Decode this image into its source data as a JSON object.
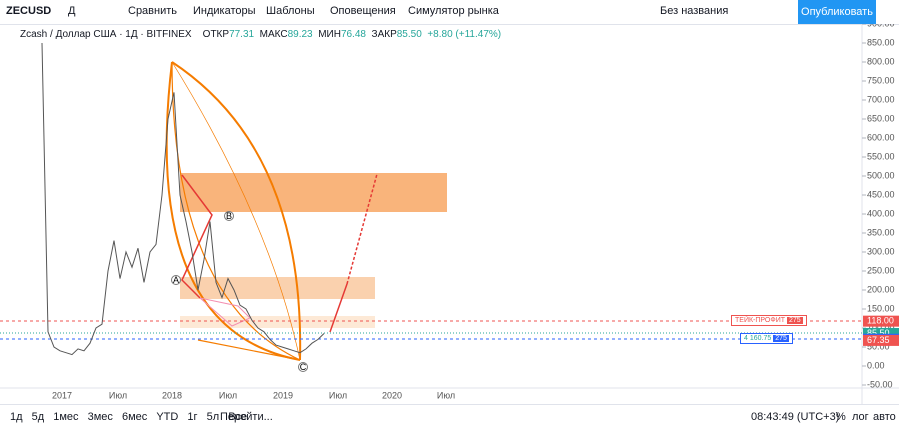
{
  "toolbar": {
    "symbol": "ZECUSD",
    "interval": "Д",
    "compare": "Сравнить",
    "indicators": "Индикаторы",
    "templates": "Шаблоны",
    "alerts": "Оповещения",
    "replay": "Симулятор рынка",
    "layout_name": "Без названия",
    "publish": "Опубликовать"
  },
  "legend": {
    "title": "Zcash / Доллар США · 1Д · BITFINEX",
    "open_label": "ОТКР",
    "open": "77.31",
    "high_label": "МАКС",
    "high": "89.23",
    "low_label": "МИН",
    "low": "76.48",
    "close_label": "ЗАКР",
    "close": "85.50",
    "change": "+8.80 (+11.47%)"
  },
  "chart_data": {
    "type": "line",
    "color": "#555555",
    "categories": [
      null,
      null,
      null,
      null,
      null,
      null,
      null,
      null,
      null,
      null,
      null,
      null,
      null,
      null,
      null,
      null,
      null,
      null,
      null,
      null,
      null,
      null,
      null,
      null,
      null,
      null,
      null,
      null,
      null,
      null,
      null,
      null,
      null,
      null,
      null,
      null,
      null,
      null,
      null,
      null,
      null,
      null,
      null,
      null,
      null,
      null,
      null,
      null
    ],
    "values": [
      850,
      90,
      50,
      40,
      35,
      30,
      45,
      40,
      60,
      100,
      110,
      250,
      330,
      230,
      300,
      260,
      310,
      220,
      300,
      320,
      450,
      650,
      720,
      450,
      380,
      300,
      200,
      280,
      380,
      220,
      180,
      230,
      200,
      160,
      150,
      120,
      100,
      90,
      70,
      55,
      50,
      45,
      40,
      35,
      45,
      60,
      70,
      85.5
    ],
    "ylim": [
      -50,
      900
    ],
    "yticks": [
      {
        "value": -50,
        "label": "-50.00"
      },
      {
        "value": 0,
        "label": "0.00"
      },
      {
        "value": 50,
        "label": "50.00"
      },
      {
        "value": 100,
        "label": "100.00"
      },
      {
        "value": 150,
        "label": "150.00"
      },
      {
        "value": 200,
        "label": "200.00"
      },
      {
        "value": 250,
        "label": "250.00"
      },
      {
        "value": 300,
        "label": "300.00"
      },
      {
        "value": 350,
        "label": "350.00"
      },
      {
        "value": 400,
        "label": "400.00"
      },
      {
        "value": 450,
        "label": "450.00"
      },
      {
        "value": 500,
        "label": "500.00"
      },
      {
        "value": 550,
        "label": "550.00"
      },
      {
        "value": 600,
        "label": "600.00"
      },
      {
        "value": 650,
        "label": "650.00"
      },
      {
        "value": 700,
        "label": "700.00"
      },
      {
        "value": 750,
        "label": "750.00"
      },
      {
        "value": 800,
        "label": "800.00"
      },
      {
        "value": 850,
        "label": "850.00"
      },
      {
        "value": 900,
        "label": "900.00"
      }
    ],
    "time_labels": [
      "2017",
      "Июл",
      "2018",
      "Июл",
      "2019",
      "Июл",
      "2020",
      "Июл"
    ],
    "price_labels": [
      {
        "value": 118,
        "label": "118.00",
        "color": "#ef5350"
      },
      {
        "value": 85.5,
        "label": "85.50",
        "color": "#26a69a"
      },
      {
        "value": 70.37,
        "label": "70.37",
        "color": "#2962ff"
      },
      {
        "value": 67.35,
        "label": "67.35",
        "color": "#ef5350"
      }
    ],
    "points": [
      "A",
      "B",
      "C"
    ]
  },
  "position": {
    "take_profit": "ТЕЙК-ПРОФИТ",
    "tp_qty": "275",
    "entry": "4 160.75",
    "entry_qty": "275"
  },
  "bottom": {
    "ranges": [
      "1д",
      "5д",
      "1мес",
      "3мес",
      "6мес",
      "YTD",
      "1г",
      "5л",
      "Все"
    ],
    "goto": "Перейти...",
    "time": "08:43:49 (UTC+3)",
    "percent": "%",
    "log": "лог",
    "auto": "авто"
  }
}
